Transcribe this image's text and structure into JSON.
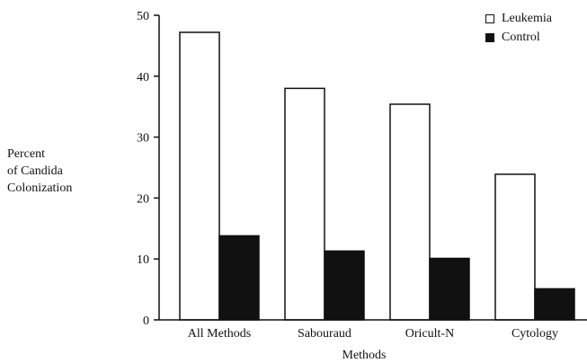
{
  "chart_data": {
    "type": "bar",
    "categories": [
      "All Methods",
      "Sabouraud",
      "Oricult-N",
      "Cytology"
    ],
    "series": [
      {
        "name": "Leukemia",
        "values": [
          47.2,
          38.0,
          35.4,
          23.9
        ],
        "color": "#ffffff"
      },
      {
        "name": "Control",
        "values": [
          13.8,
          11.3,
          10.1,
          5.1
        ],
        "color": "#111111"
      }
    ],
    "title": "",
    "xlabel": "Methods",
    "ylabel_lines": [
      "Percent",
      "of Candida",
      "Colonization"
    ],
    "ylim": [
      0,
      50
    ],
    "yticks": [
      0,
      10,
      20,
      30,
      40,
      50
    ],
    "grid": false,
    "legend_position": "top-right"
  }
}
